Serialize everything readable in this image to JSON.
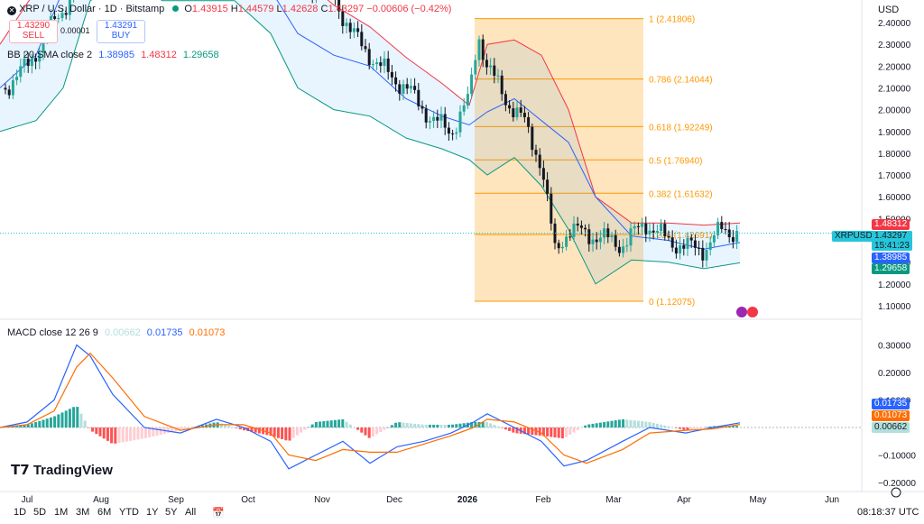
{
  "header": {
    "symbol": "XRP / U.S. Dollar · 1D · Bitstamp",
    "o_label": "O",
    "o": "1.43915",
    "h_label": "H",
    "h": "1.44579",
    "l_label": "L",
    "l": "1.42628",
    "c_label": "C",
    "c": "1.43297",
    "change": "−0.00606 (−0.42%)",
    "sell_price": "1.43290",
    "sell_label": "SELL",
    "spread": "0.00001",
    "buy_price": "1.43291",
    "buy_label": "BUY",
    "bb_title": "BB 20 SMA close 2",
    "bb_basis": "1.38985",
    "bb_upper": "1.48312",
    "bb_lower": "1.29658",
    "macd_title": "MACD close 12 26 9",
    "macd_hist": "0.00662",
    "macd_line": "0.01735",
    "macd_signal": "0.01073"
  },
  "price_axis": {
    "currency": "USD",
    "ticks": [
      "2.40000",
      "2.30000",
      "2.20000",
      "2.10000",
      "2.00000",
      "1.90000",
      "1.80000",
      "1.70000",
      "1.60000",
      "1.50000",
      "1.30000",
      "1.20000",
      "1.10000"
    ]
  },
  "macd_axis": {
    "ticks": [
      "0.30000",
      "0.20000",
      "0.10000",
      "−0.10000",
      "−0.20000"
    ]
  },
  "badges": {
    "bb_upper": "1.48312",
    "symbol": "XRPUSD",
    "price": "1.43297",
    "countdown": "15:41:23",
    "bb_basis": "1.38985",
    "bb_lower": "1.29658",
    "macd_line": "0.01735",
    "macd_signal": "0.01073",
    "macd_hist": "0.00662"
  },
  "fib": [
    {
      "label": "1 (2.41806)",
      "value": 2.41806
    },
    {
      "label": "0.786 (2.14044)",
      "value": 2.14044
    },
    {
      "label": "0.618 (1.92249)",
      "value": 1.92249
    },
    {
      "label": "0.5 (1.76940)",
      "value": 1.7694
    },
    {
      "label": "0.382 (1.61632)",
      "value": 1.61632
    },
    {
      "label": "0.236 (1.42691)",
      "value": 1.42691
    },
    {
      "label": "0 (1.12075)",
      "value": 1.12075
    }
  ],
  "time_axis": [
    "Jul",
    "Aug",
    "Sep",
    "Oct",
    "Nov",
    "Dec",
    "2026",
    "Feb",
    "Mar",
    "Apr",
    "May",
    "Jun"
  ],
  "timeframes": [
    "1D",
    "5D",
    "1M",
    "3M",
    "6M",
    "YTD",
    "1Y",
    "5Y",
    "All"
  ],
  "clock": "08:18:37 UTC",
  "branding": "TradingView",
  "colors": {
    "up": "#26a69a",
    "down": "#131722",
    "bb_upper": "#f23645",
    "bb_basis": "#2962ff",
    "bb_lower": "#089981",
    "macd": "#2962ff",
    "signal": "#ff6d00",
    "fib": "#ff9800",
    "fill": "#2196f3"
  },
  "chart_data": {
    "type": "candlestick",
    "title": "XRP / U.S. Dollar · 1D · Bitstamp",
    "x": [
      "Jul",
      "Aug",
      "Sep",
      "Oct",
      "Nov",
      "Dec",
      "Jan",
      "Feb",
      "Mar",
      "Apr"
    ],
    "close": [
      2.3,
      2.95,
      2.85,
      2.85,
      2.25,
      2.0,
      2.06,
      1.65,
      1.38,
      1.43297
    ],
    "bb_upper": [
      2.7,
      3.2,
      3.05,
      3.1,
      2.45,
      2.15,
      2.3,
      2.05,
      1.45,
      1.48312
    ],
    "bb_basis": [
      2.3,
      2.95,
      2.85,
      2.9,
      2.2,
      1.95,
      2.05,
      1.75,
      1.38,
      1.38985
    ],
    "bb_lower": [
      1.95,
      2.6,
      2.65,
      2.7,
      2.0,
      1.8,
      1.78,
      1.4,
      1.3,
      1.29658
    ],
    "macd": [
      0.03,
      0.28,
      -0.03,
      0.02,
      -0.13,
      -0.05,
      0.07,
      -0.12,
      -0.01,
      0.01735
    ],
    "signal": [
      0.02,
      0.25,
      0.02,
      0.01,
      -0.1,
      -0.06,
      0.04,
      -0.1,
      -0.02,
      0.01073
    ],
    "ylim": [
      1.05,
      2.46
    ]
  }
}
